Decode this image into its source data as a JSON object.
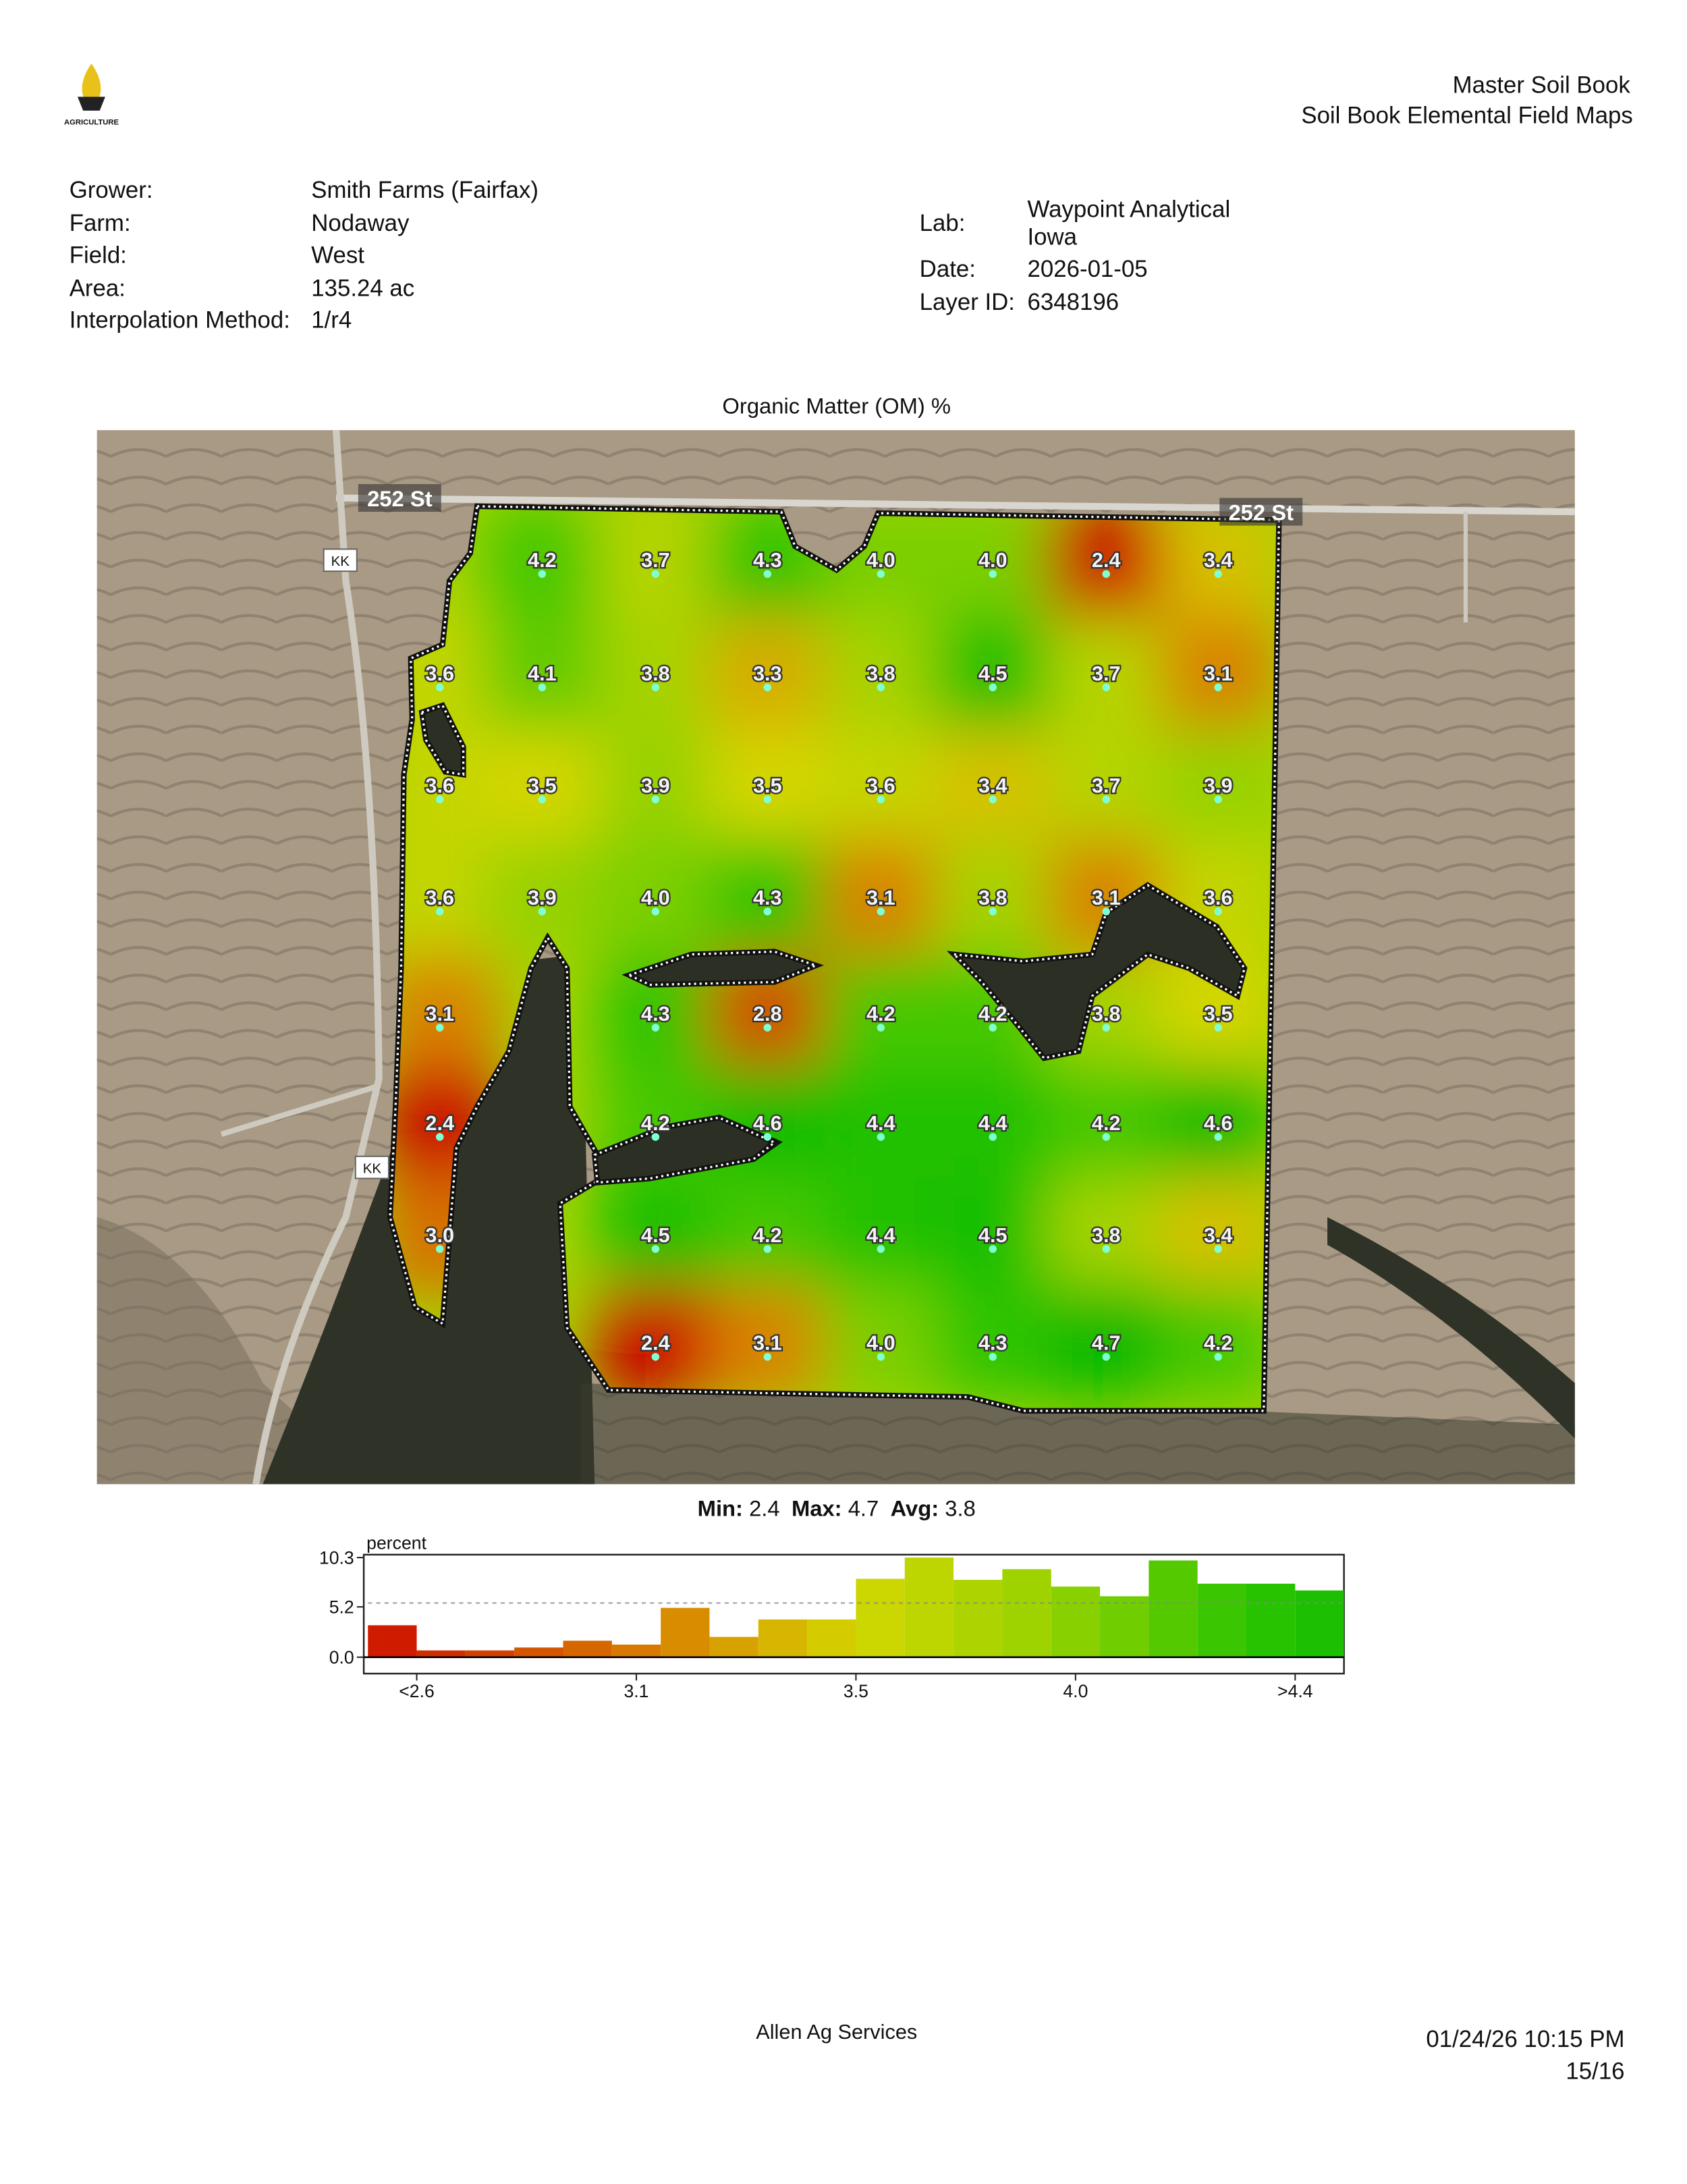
{
  "header": {
    "logo_text": "AGRICULTURE",
    "title": "Master Soil Book",
    "subtitle": "Soil Book Elemental Field Maps"
  },
  "info_left": [
    [
      "Grower:",
      "Smith Farms (Fairfax)"
    ],
    [
      "Farm:",
      "Nodaway"
    ],
    [
      "Field:",
      "West"
    ],
    [
      "Area:",
      "135.24 ac"
    ],
    [
      "Interpolation Method:",
      "1/r4"
    ]
  ],
  "info_right": [
    [
      "Lab:",
      "Waypoint Analytical Iowa"
    ],
    [
      "Date:",
      "2026-01-05"
    ],
    [
      "Layer ID:",
      "6348196"
    ]
  ],
  "map": {
    "title": "Organic Matter (OM) %",
    "road_labels": [
      "252 St",
      "252 St",
      "KK",
      "KK"
    ],
    "samples": [
      [
        null,
        "4.2",
        "3.7",
        "4.3",
        "4.0",
        "4.0",
        "2.4",
        "3.4"
      ],
      [
        "3.6",
        "4.1",
        "3.8",
        "3.3",
        "3.8",
        "4.5",
        "3.7",
        "3.1"
      ],
      [
        "3.6",
        "3.5",
        "3.9",
        "3.5",
        "3.6",
        "3.4",
        "3.7",
        "3.9"
      ],
      [
        "3.6",
        "3.9",
        "4.0",
        "4.3",
        "3.1",
        "3.8",
        "3.1",
        "3.6"
      ],
      [
        "3.1",
        null,
        "4.3",
        "2.8",
        "4.2",
        "4.2",
        "3.8",
        "3.5"
      ],
      [
        "2.4",
        null,
        "4.2",
        "4.6",
        "4.4",
        "4.4",
        "4.2",
        "4.6"
      ],
      [
        "3.0",
        null,
        "4.5",
        "4.2",
        "4.4",
        "4.5",
        "3.8",
        "3.4"
      ],
      [
        null,
        null,
        "2.4",
        "3.1",
        "4.0",
        "4.3",
        "4.7",
        "4.2"
      ]
    ]
  },
  "stats": [
    {
      "label": "Min:",
      "value": "2.4"
    },
    {
      "label": "Max:",
      "value": "4.7"
    },
    {
      "label": "Avg:",
      "value": "3.8"
    }
  ],
  "chart_data": {
    "type": "histogram",
    "y_label": "percent",
    "bins": [
      2.5,
      2.6,
      2.7,
      2.8,
      2.9,
      3.0,
      3.1,
      3.2,
      3.3,
      3.4,
      3.5,
      3.6,
      3.7,
      3.8,
      3.9,
      4.0,
      4.1,
      4.2,
      4.3,
      4.4,
      4.5
    ],
    "values": [
      3.3,
      0.7,
      0.7,
      1.0,
      1.7,
      1.3,
      5.1,
      2.1,
      3.9,
      3.9,
      8.1,
      10.3,
      8.0,
      9.1,
      7.3,
      6.3,
      10.0,
      7.6,
      7.6,
      6.9
    ],
    "xlim": [
      2.5,
      4.5
    ],
    "ylim": [
      -1.7,
      10.6
    ],
    "xticks": [
      {
        "value": 2.6,
        "label": "<2.6"
      },
      {
        "value": 3.05,
        "label": "3.1"
      },
      3.5,
      {
        "value": 3.95,
        "label": "4.0"
      },
      {
        "value": 4.4,
        "label": ">4.4"
      }
    ],
    "yticks": [
      {
        "value": 0,
        "label": "0.0"
      },
      5.2,
      10.3
    ],
    "reference_line": 5.6
  },
  "footer": {
    "company": "Allen Ag Services",
    "timestamp": "01/24/26 10:15 PM",
    "page": "15/16"
  }
}
